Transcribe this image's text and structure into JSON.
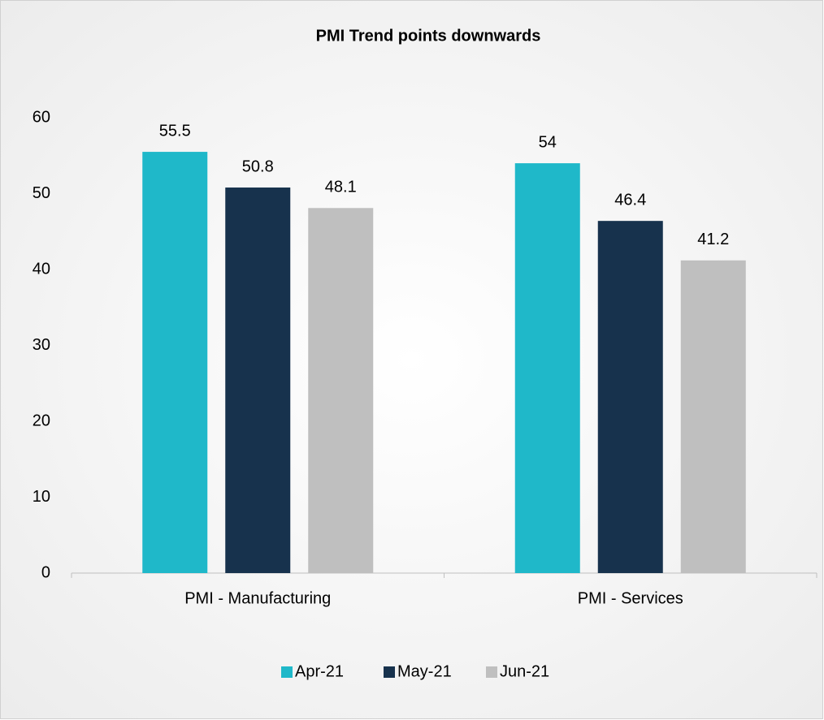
{
  "chart_data": {
    "type": "bar",
    "title": "PMI Trend  points downwards",
    "categories": [
      "PMI - Manufacturing",
      "PMI - Services"
    ],
    "series": [
      {
        "name": "Apr-21",
        "color": "#1fb8c9",
        "values": [
          55.5,
          54
        ]
      },
      {
        "name": "May-21",
        "color": "#17324d",
        "values": [
          50.8,
          46.4
        ]
      },
      {
        "name": "Jun-21",
        "color": "#bfbfbf",
        "values": [
          48.1,
          41.2
        ]
      }
    ],
    "ylim": [
      0,
      60
    ],
    "yticks": [
      0,
      10,
      20,
      30,
      40,
      50,
      60
    ],
    "grid": false,
    "legend": "bottom"
  }
}
